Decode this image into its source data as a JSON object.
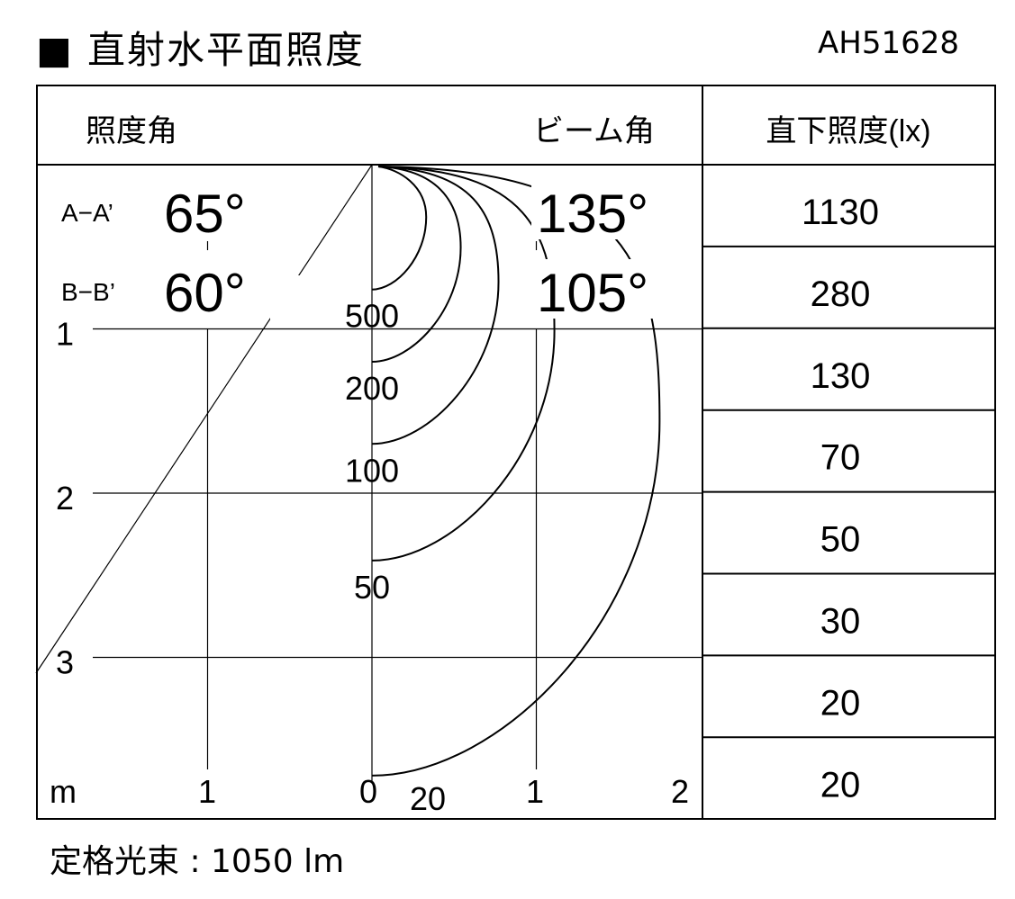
{
  "header": {
    "title": "■ 直射水平面照度",
    "model": "AH51628"
  },
  "table_header": {
    "angle_label": "照度角",
    "beam_label": "ビーム角",
    "illuminance_label": "直下照度(lx)"
  },
  "angles": [
    {
      "section": "A−A’",
      "illum_angle": "65°",
      "beam_angle": "135°"
    },
    {
      "section": "B−B’",
      "illum_angle": "60°",
      "beam_angle": "105°"
    }
  ],
  "direct_illuminance": [
    "1130",
    "280",
    "130",
    "70",
    "50",
    "30",
    "20",
    "20"
  ],
  "chart_data": {
    "type": "contour",
    "x_unit": "m",
    "x_ticks": [
      "1",
      "0",
      "1",
      "2"
    ],
    "y_ticks": [
      "1",
      "2",
      "3"
    ],
    "contour_levels": [
      "500",
      "200",
      "100",
      "50",
      "20"
    ],
    "contours": [
      {
        "level": 500,
        "max_x_m": 0.33,
        "depth_m": 0.76
      },
      {
        "level": 200,
        "max_x_m": 0.54,
        "depth_m": 1.2
      },
      {
        "level": 100,
        "max_x_m": 0.77,
        "depth_m": 1.7
      },
      {
        "level": 50,
        "max_x_m": 1.11,
        "depth_m": 2.41
      },
      {
        "level": 20,
        "max_x_m": 1.75,
        "depth_m": 3.72
      }
    ],
    "grid": true
  },
  "footer": {
    "rated_flux": "定格光束 : 1050 lm"
  }
}
